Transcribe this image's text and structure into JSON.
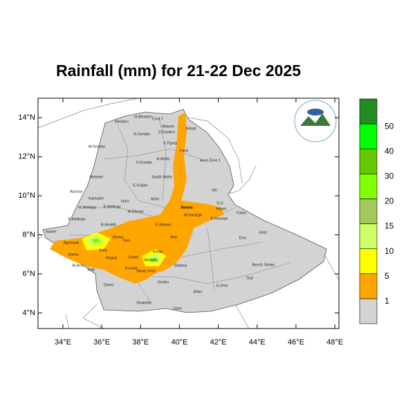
{
  "title": "Rainfall (mm) for 21-22 Dec 2025",
  "map": {
    "xlim": [
      32.72,
      48.21
    ],
    "ylim": [
      3.2,
      15.0
    ],
    "xticks": [
      {
        "value": 34,
        "label": "34°E"
      },
      {
        "value": 36,
        "label": "36°E"
      },
      {
        "value": 38,
        "label": "38°E"
      },
      {
        "value": 40,
        "label": "40°E"
      },
      {
        "value": 42,
        "label": "42°E"
      },
      {
        "value": 44,
        "label": "44°E"
      },
      {
        "value": 46,
        "label": "46°E"
      },
      {
        "value": 48,
        "label": "48°E"
      }
    ],
    "yticks": [
      {
        "value": 4,
        "label": "4°N"
      },
      {
        "value": 6,
        "label": "6°N"
      },
      {
        "value": 8,
        "label": "8°N"
      },
      {
        "value": 10,
        "label": "10°N"
      },
      {
        "value": 12,
        "label": "12°N"
      },
      {
        "value": 14,
        "label": "14°N"
      }
    ],
    "region_names": [
      "Western",
      "N.Western",
      "Cent.T",
      "Mekele",
      "S.Eastern",
      "Kilbati",
      "N.Gondar",
      "S.Tigray",
      "W.Gondar",
      "Fanti",
      "Awsi Zone 1",
      "N.Wollo",
      "S.Gondar",
      "Metekel",
      "E.Gojam",
      "South Wollo",
      "Siti",
      "Assosa",
      "Kamashi",
      "NSH",
      "D.D",
      "Harari",
      "Fafan",
      "W.Wellega",
      "E.Wellega",
      "Horo",
      "W.Shewa",
      "W.Hararge",
      "E.Hararge",
      "K.Wellega",
      "Nuwer",
      "Jarar",
      "B.Bedelli",
      "E.Shewa",
      "Agnewak",
      "Jimma",
      "Yem",
      "Arsi",
      "Erer",
      "Sheka",
      "Kefa",
      "Nogob",
      "Doolo",
      "Konta",
      "Wolayta",
      "W.Arsi",
      "Sidama",
      "Bench Sheko",
      "Bale",
      "Korahe",
      "Mirab Omo",
      "Gamo",
      "Gedeo",
      "S.Omo",
      "Guji",
      "Afder",
      "Shabelle",
      "Liban",
      "Borena",
      "Daawa"
    ]
  },
  "colorbar": {
    "levels": [
      1,
      5,
      10,
      15,
      20,
      30,
      40,
      50
    ],
    "colors": [
      "#d3d3d3",
      "#ffa500",
      "#ffff00",
      "#ccff66",
      "#a3c95c",
      "#7fff00",
      "#66c800",
      "#00ff00",
      "#228b22"
    ]
  }
}
